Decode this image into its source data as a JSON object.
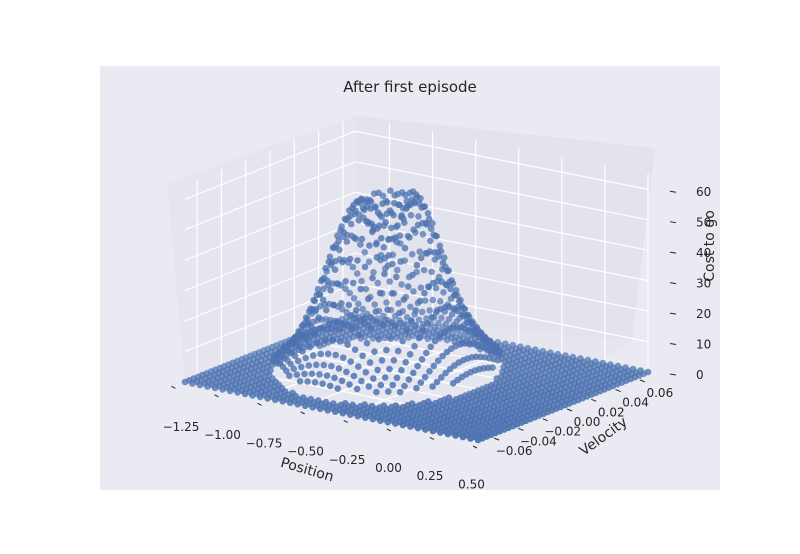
{
  "chart_data": {
    "type": "scatter3d",
    "title": "After first episode",
    "xlabel": "Position",
    "ylabel": "Velocity",
    "zlabel": "Cost to go",
    "x_ticks": [
      "−1.25",
      "−1.00",
      "−0.75",
      "−0.50",
      "−0.25",
      "0.00",
      "0.25",
      "0.50"
    ],
    "y_ticks": [
      "−0.06",
      "−0.04",
      "−0.02",
      "0.00",
      "0.02",
      "0.04",
      "0.06"
    ],
    "z_ticks": [
      "0",
      "10",
      "20",
      "30",
      "40",
      "50",
      "60"
    ],
    "xlim": [
      -1.2,
      0.5
    ],
    "ylim": [
      -0.07,
      0.07
    ],
    "zlim": [
      0,
      65
    ],
    "grid": true,
    "marker_color": "#4c72b0",
    "background": "#eaeaf2",
    "grid_size": [
      40,
      40
    ]
  }
}
